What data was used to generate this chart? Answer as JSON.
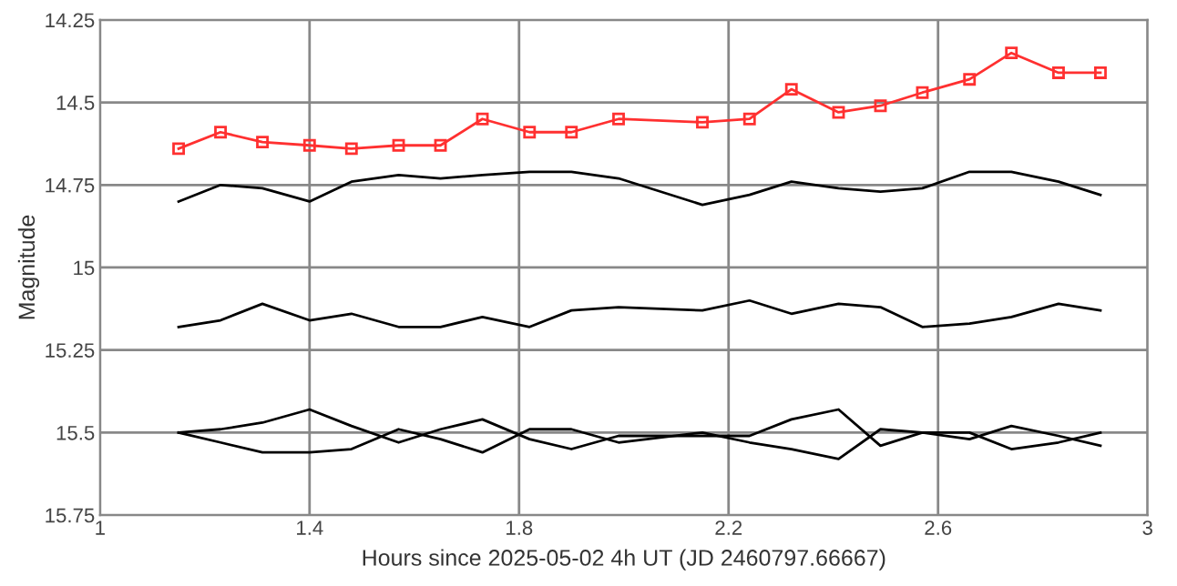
{
  "chart_data": {
    "type": "line",
    "xlabel": "Hours since 2025-05-02 4h UT (JD 2460797.66667)",
    "ylabel": "Magnitude",
    "x": [
      1.15,
      1.23,
      1.31,
      1.4,
      1.48,
      1.57,
      1.65,
      1.73,
      1.82,
      1.9,
      1.99,
      2.15,
      2.24,
      2.32,
      2.41,
      2.49,
      2.57,
      2.66,
      2.74,
      2.83,
      2.91
    ],
    "series": [
      {
        "color": "#ff3030",
        "marker": "square",
        "values": [
          14.64,
          14.59,
          14.62,
          14.63,
          14.64,
          14.63,
          14.63,
          14.55,
          14.59,
          14.59,
          14.55,
          14.56,
          14.55,
          14.46,
          14.53,
          14.51,
          14.47,
          14.43,
          14.35,
          14.41,
          14.41
        ]
      },
      {
        "color": "#000000",
        "marker": "none",
        "values": [
          14.8,
          14.75,
          14.76,
          14.8,
          14.74,
          14.72,
          14.73,
          14.72,
          14.71,
          14.71,
          14.73,
          14.81,
          14.78,
          14.74,
          14.76,
          14.77,
          14.76,
          14.71,
          14.71,
          14.74,
          14.78
        ]
      },
      {
        "color": "#000000",
        "marker": "none",
        "values": [
          15.18,
          15.16,
          15.11,
          15.16,
          15.14,
          15.18,
          15.18,
          15.15,
          15.18,
          15.13,
          15.12,
          15.13,
          15.1,
          15.14,
          15.11,
          15.12,
          15.18,
          15.17,
          15.15,
          15.11,
          15.13
        ]
      },
      {
        "color": "#000000",
        "marker": "none",
        "values": [
          15.5,
          15.49,
          15.47,
          15.43,
          15.48,
          15.53,
          15.49,
          15.46,
          15.52,
          15.55,
          15.51,
          15.51,
          15.51,
          15.46,
          15.43,
          15.54,
          15.5,
          15.52,
          15.48,
          15.51,
          15.54
        ]
      },
      {
        "color": "#000000",
        "marker": "none",
        "values": [
          15.5,
          15.53,
          15.56,
          15.56,
          15.55,
          15.49,
          15.52,
          15.56,
          15.49,
          15.49,
          15.53,
          15.5,
          15.53,
          15.55,
          15.58,
          15.49,
          15.5,
          15.5,
          15.55,
          15.53,
          15.5
        ]
      }
    ],
    "xlim": [
      1,
      3
    ],
    "xticks": [
      1,
      1.4,
      1.8,
      2.2,
      2.6,
      3
    ],
    "ylim": [
      15.75,
      14.25
    ],
    "yticks": [
      14.25,
      14.5,
      14.75,
      15,
      15.25,
      15.5,
      15.75
    ],
    "grid": true,
    "legend": false,
    "line_style": "solid"
  }
}
